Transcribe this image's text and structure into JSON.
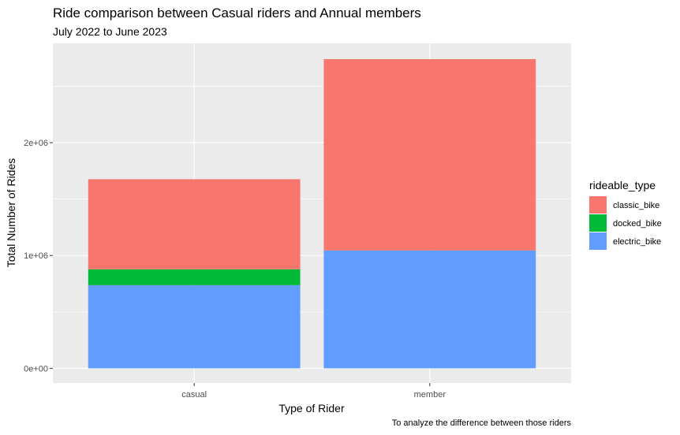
{
  "chart_data": {
    "type": "bar",
    "stacked": true,
    "title": "Ride comparison between Casual riders and Annual members",
    "subtitle": "July 2022 to June 2023",
    "caption": "To analyze the difference between those riders",
    "xlabel": "Type of Rider",
    "ylabel": "Total Number of Rides",
    "categories": [
      "casual",
      "member"
    ],
    "series": [
      {
        "name": "electric_bike",
        "color": "#619CFF",
        "values": [
          737000,
          1045000
        ]
      },
      {
        "name": "docked_bike",
        "color": "#00BA38",
        "values": [
          141000,
          0
        ]
      },
      {
        "name": "classic_bike",
        "color": "#F8766D",
        "values": [
          798000,
          1695000
        ]
      }
    ],
    "legend_title": "rideable_type",
    "legend_order": [
      "classic_bike",
      "docked_bike",
      "electric_bike"
    ],
    "y_ticks": [
      {
        "value": 0,
        "label": "0e+00"
      },
      {
        "value": 1000000,
        "label": "1e+06"
      },
      {
        "value": 2000000,
        "label": "2e+06"
      }
    ],
    "ylim": [
      -130000,
      2880000
    ],
    "grid": true,
    "legend_position": "right",
    "panel_background": "#EBEBEB"
  }
}
